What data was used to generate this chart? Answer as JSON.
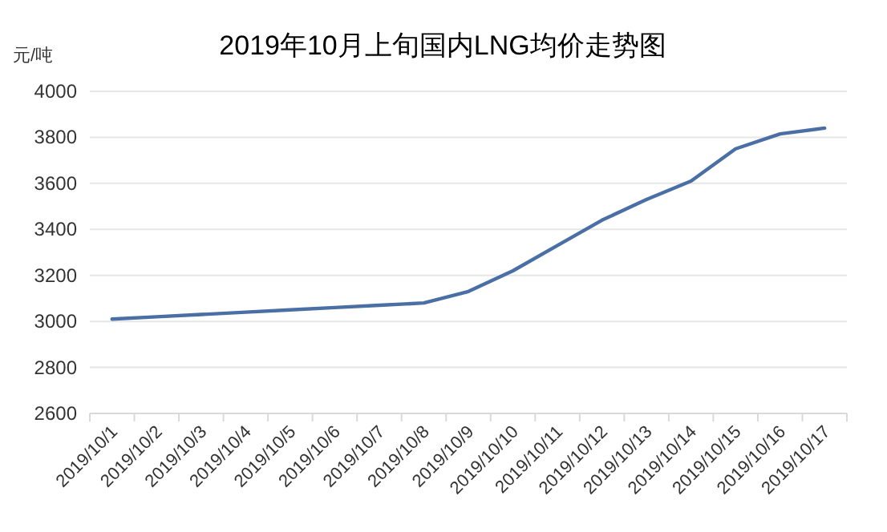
{
  "chart_data": {
    "type": "line",
    "title": "2019年10月上旬国内LNG均价走势图",
    "ylabel": "元/吨",
    "categories": [
      "2019/10/1",
      "2019/10/2",
      "2019/10/3",
      "2019/10/4",
      "2019/10/5",
      "2019/10/6",
      "2019/10/7",
      "2019/10/8",
      "2019/10/9",
      "2019/10/10",
      "2019/10/11",
      "2019/10/12",
      "2019/10/13",
      "2019/10/14",
      "2019/10/15",
      "2019/10/16",
      "2019/10/17"
    ],
    "series": [
      {
        "color": "#4a6fa5",
        "values": [
          3010,
          3020,
          3030,
          3040,
          3050,
          3060,
          3070,
          3080,
          3130,
          3220,
          3330,
          3440,
          3530,
          3610,
          3750,
          3815,
          3840
        ]
      }
    ],
    "ylim": [
      2600,
      4000
    ],
    "yticks": [
      2600,
      2800,
      3000,
      3200,
      3400,
      3600,
      3800,
      4000
    ],
    "grid": "y",
    "marker": "none",
    "line_style": "solid"
  }
}
